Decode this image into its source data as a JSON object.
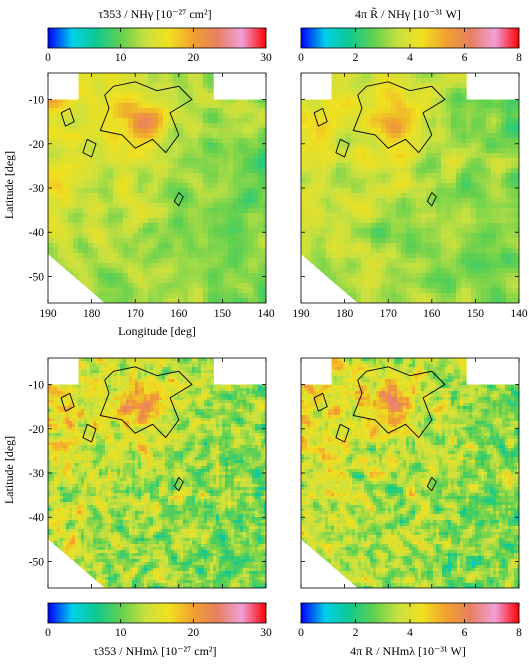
{
  "figure": {
    "panels": [
      {
        "id": "tl",
        "seed": 11,
        "smooth": 3,
        "ylabel": "Latitude [deg]",
        "xlabel": "Longitude [deg]",
        "show_xticks": true,
        "show_yticks": true
      },
      {
        "id": "tr",
        "seed": 23,
        "smooth": 3,
        "ylabel": "",
        "xlabel": "",
        "show_xticks": true,
        "show_yticks": false
      },
      {
        "id": "bl",
        "seed": 37,
        "smooth": 1,
        "ylabel": "Latitude [deg]",
        "xlabel": "",
        "show_xticks": false,
        "show_yticks": true
      },
      {
        "id": "br",
        "seed": 51,
        "smooth": 1,
        "ylabel": "",
        "xlabel": "",
        "show_xticks": false,
        "show_yticks": false
      }
    ],
    "colorbars": [
      {
        "id": "cb-top-left",
        "title": "τ̃353 / NHγ [10⁻²⁷ cm²]",
        "ticks": [
          "0",
          "10",
          "20",
          "30"
        ]
      },
      {
        "id": "cb-top-right",
        "title": "4π R̃ / NHγ [10⁻³¹ W]",
        "ticks": [
          "0",
          "2",
          "4",
          "6",
          "8"
        ]
      },
      {
        "id": "cb-bottom-left",
        "title": "τ353 / NHmλ [10⁻²⁷ cm²]",
        "ticks": [
          "0",
          "10",
          "20",
          "30"
        ]
      },
      {
        "id": "cb-bottom-right",
        "title": "4π R / NHmλ [10⁻³¹ W]",
        "ticks": [
          "0",
          "2",
          "4",
          "6",
          "8"
        ]
      }
    ],
    "x_ticks": [
      "190",
      "180",
      "170",
      "160",
      "150",
      "140"
    ],
    "y_ticks": [
      "-10",
      "-20",
      "-30",
      "-40",
      "-50"
    ],
    "colormap": [
      "#0000ff",
      "#00d0e8",
      "#10c890",
      "#60d050",
      "#c8e040",
      "#f0e020",
      "#f0a030",
      "#e88060",
      "#f0a0d8",
      "#ff0000"
    ]
  },
  "chart_data": [
    {
      "type": "heatmap",
      "title": "τ̃353 / NHγ [10⁻²⁷ cm²]",
      "xlabel": "Longitude [deg]",
      "ylabel": "Latitude [deg]",
      "xlim": [
        190,
        140
      ],
      "ylim": [
        -56,
        -4
      ],
      "zlim": [
        0,
        30
      ],
      "colorbar_ticks": [
        0,
        10,
        20,
        30
      ]
    },
    {
      "type": "heatmap",
      "title": "4π R̃ / NHγ [10⁻³¹ W]",
      "xlabel": "",
      "ylabel": "",
      "xlim": [
        190,
        140
      ],
      "ylim": [
        -56,
        -4
      ],
      "zlim": [
        0,
        8
      ],
      "colorbar_ticks": [
        0,
        2,
        4,
        6,
        8
      ]
    },
    {
      "type": "heatmap",
      "title": "τ353 / NHmλ [10⁻²⁷ cm²]",
      "xlabel": "",
      "ylabel": "Latitude [deg]",
      "xlim": [
        190,
        140
      ],
      "ylim": [
        -56,
        -4
      ],
      "zlim": [
        0,
        30
      ],
      "colorbar_ticks": [
        0,
        10,
        20,
        30
      ]
    },
    {
      "type": "heatmap",
      "title": "4π R / NHmλ [10⁻³¹ W]",
      "xlabel": "",
      "ylabel": "",
      "xlim": [
        190,
        140
      ],
      "ylim": [
        -56,
        -4
      ],
      "zlim": [
        0,
        8
      ],
      "colorbar_ticks": [
        0,
        2,
        4,
        6,
        8
      ]
    }
  ]
}
